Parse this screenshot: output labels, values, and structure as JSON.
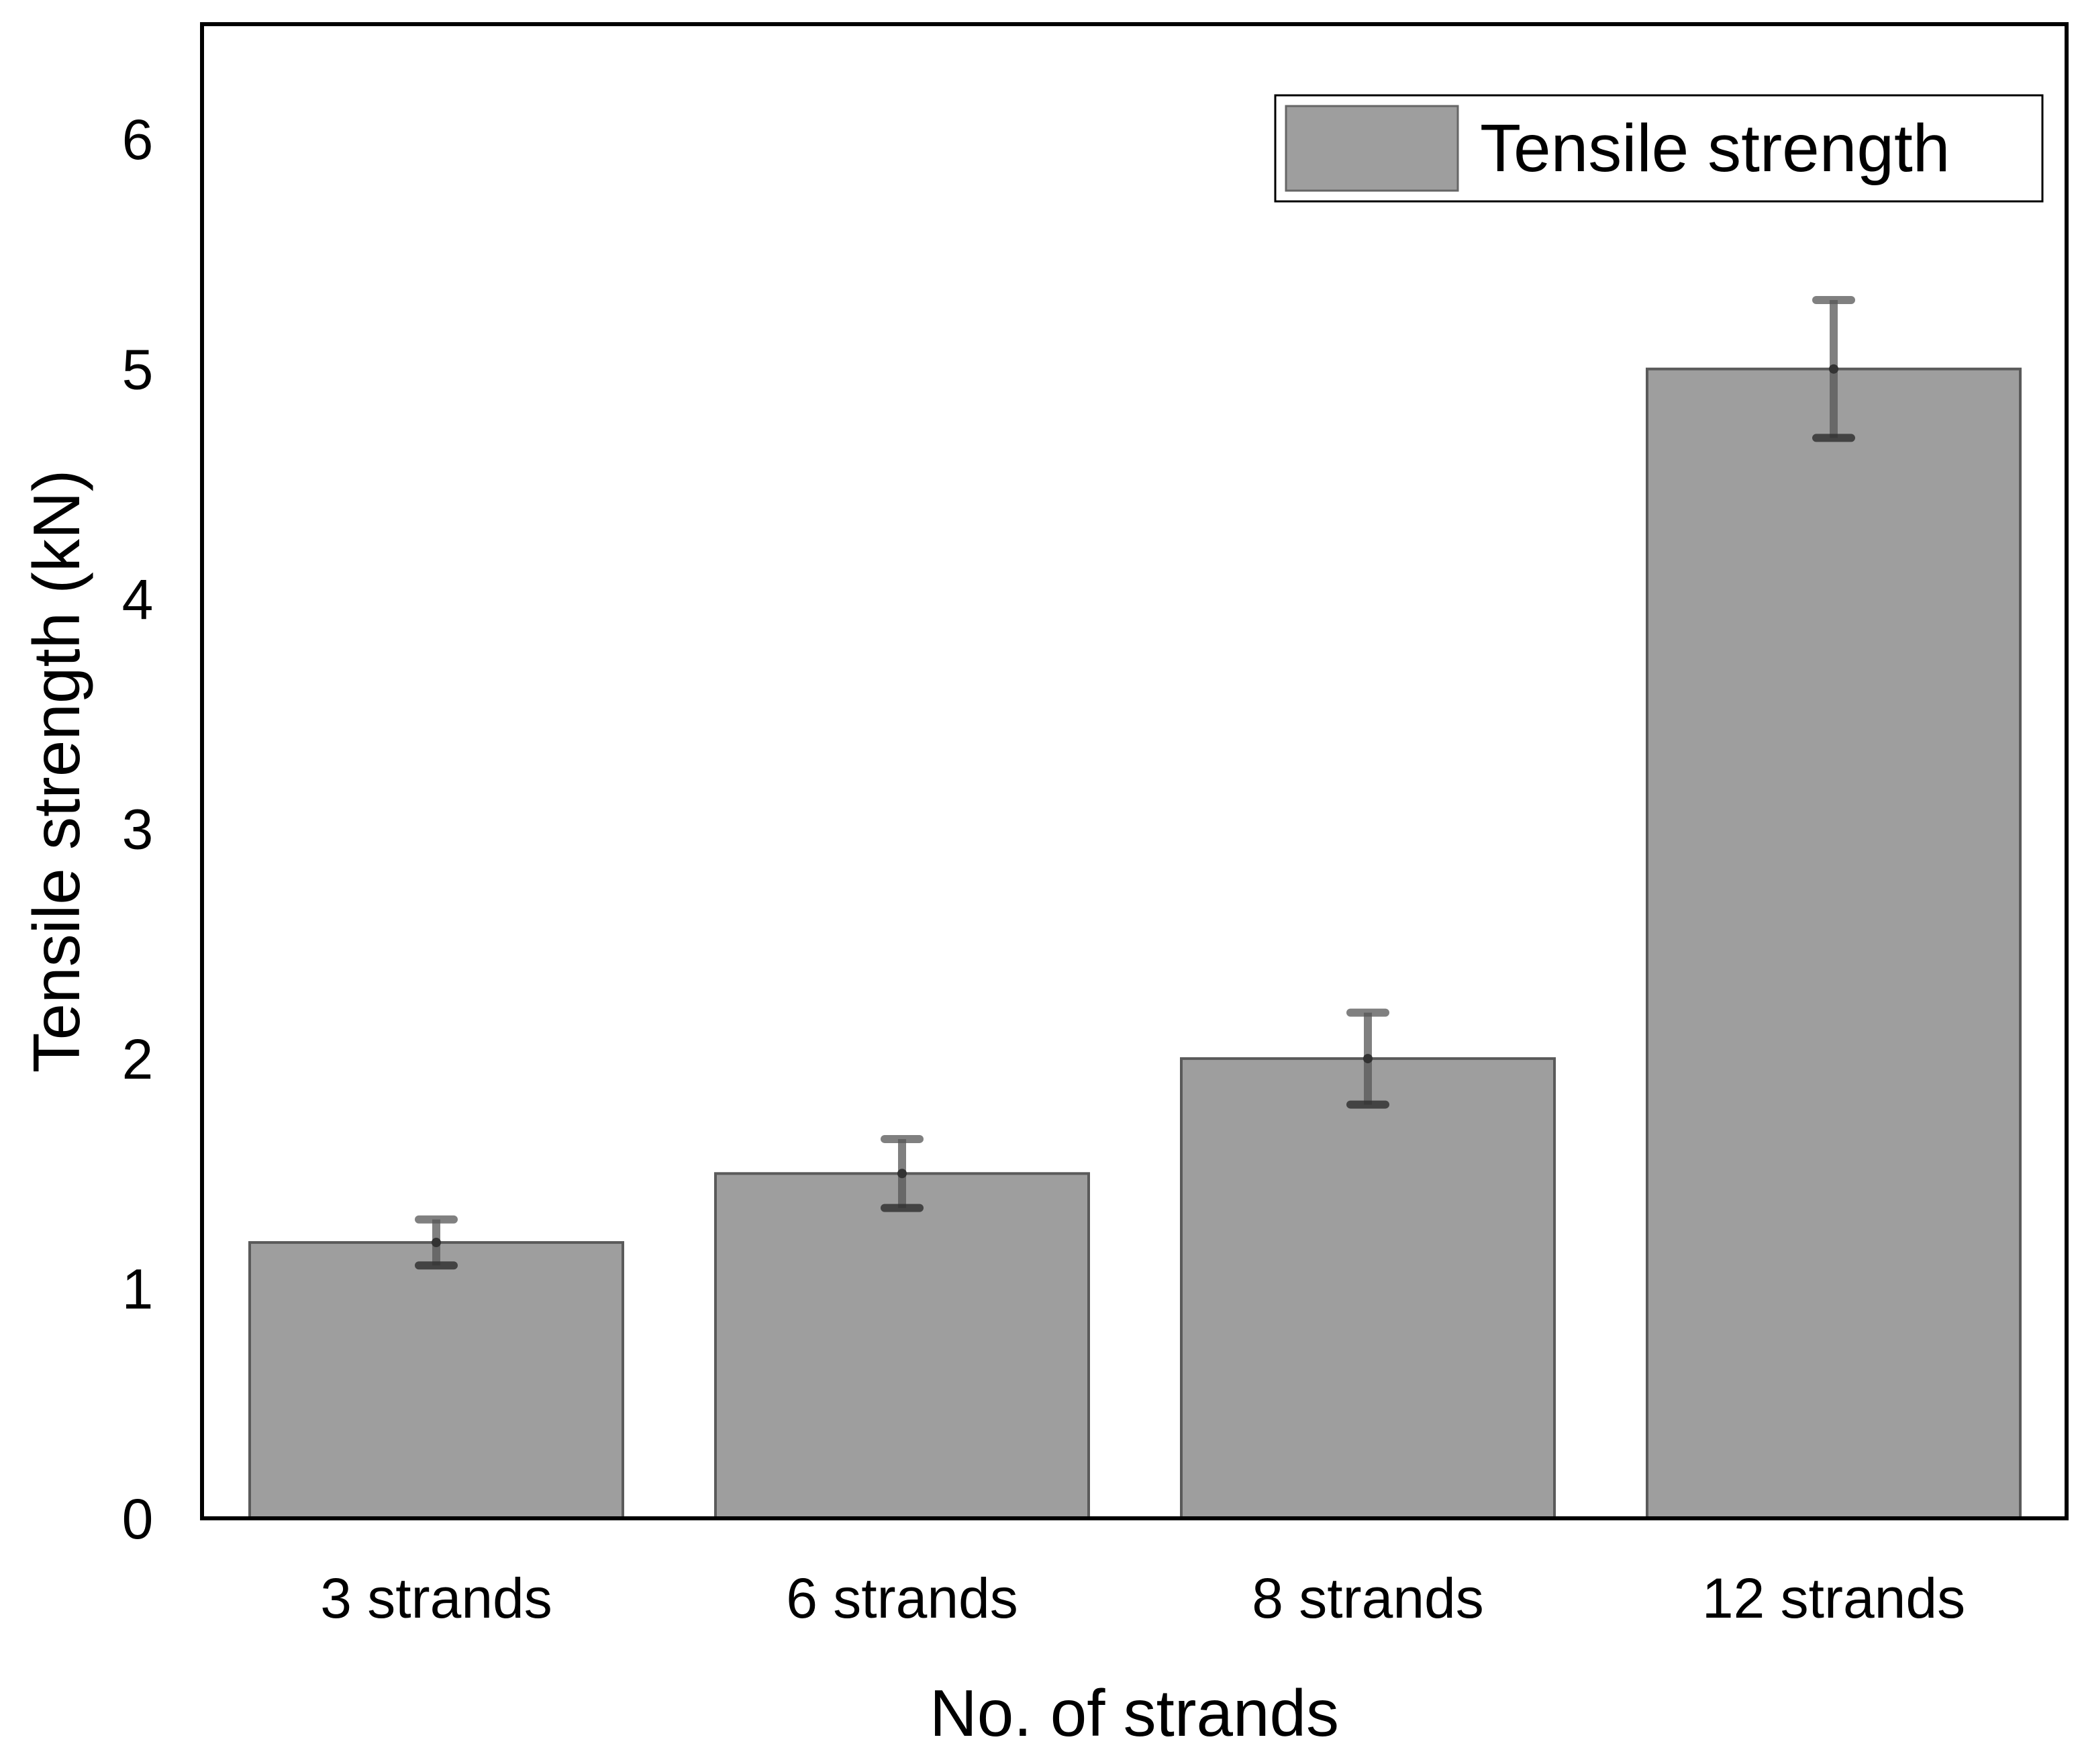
{
  "chart_data": {
    "type": "bar",
    "title": "",
    "xlabel": "No. of strands",
    "ylabel": "Tensile strength (kN)",
    "categories": [
      "3 strands",
      "6 strands",
      "8 strands",
      "12 strands"
    ],
    "series": [
      {
        "name": "Tensile strength",
        "values": [
          1.2,
          1.5,
          2.0,
          5.0
        ],
        "error_low": [
          1.1,
          1.35,
          1.8,
          4.7
        ],
        "error_high": [
          1.3,
          1.65,
          2.2,
          5.3
        ],
        "color": "#9e9e9e"
      }
    ],
    "ylim": [
      0,
      6.5
    ],
    "yticks": [
      "0",
      "1",
      "2",
      "3",
      "4",
      "5",
      "6"
    ],
    "grid": false,
    "legend_position": "top-right",
    "colors": {
      "bar_fill": "#9e9e9e",
      "bar_edge": "#5a5a5a",
      "error_bar": "#555555",
      "axis": "#000000"
    }
  }
}
